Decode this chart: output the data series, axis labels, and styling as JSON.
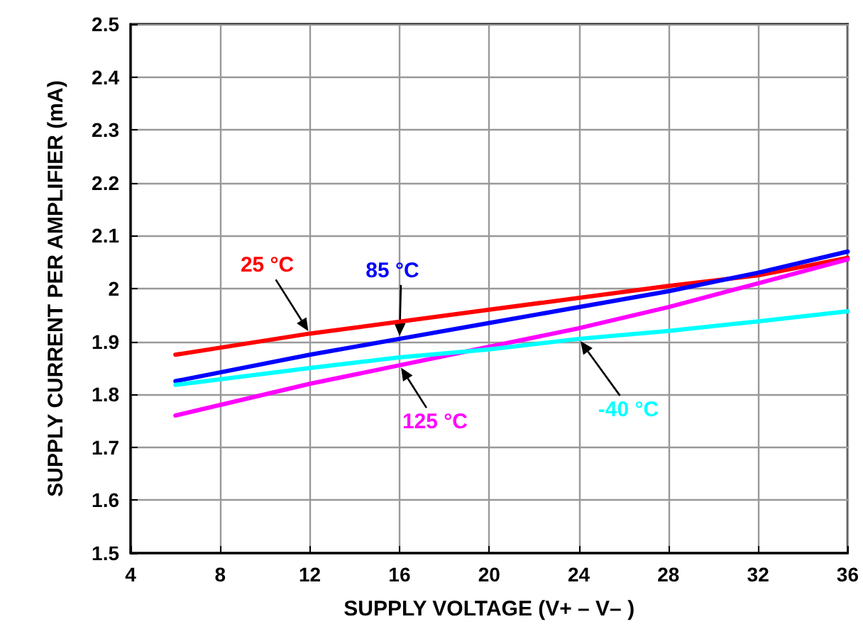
{
  "chart_data": {
    "type": "line",
    "xlabel": "SUPPLY VOLTAGE (V+ – V– )",
    "ylabel": "SUPPLY CURRENT PER AMPLIFIER (mA)",
    "xlim": [
      4,
      36
    ],
    "xticks": [
      4,
      8,
      12,
      16,
      20,
      24,
      28,
      32,
      36
    ],
    "ylim": [
      1.5,
      2.5
    ],
    "yticks": [
      1.5,
      1.6,
      1.7,
      1.8,
      1.9,
      2,
      2.1,
      2.2,
      2.3,
      2.4,
      2.5
    ],
    "grid": true,
    "marker": "none",
    "line_style": "solid",
    "series": [
      {
        "name": "25 °C",
        "color": "#ff0000",
        "x": [
          6,
          12,
          20,
          28,
          32,
          36
        ],
        "values": [
          1.875,
          1.915,
          1.96,
          2.005,
          2.025,
          2.058
        ]
      },
      {
        "name": "85 °C",
        "color": "#0000ff",
        "x": [
          6,
          12,
          16,
          20,
          28,
          32,
          36
        ],
        "values": [
          1.825,
          1.875,
          1.905,
          1.935,
          1.995,
          2.03,
          2.07
        ]
      },
      {
        "name": "125 °C",
        "color": "#ff00ff",
        "x": [
          6,
          12,
          16,
          20,
          24,
          28,
          32,
          36
        ],
        "values": [
          1.76,
          1.82,
          1.855,
          1.89,
          1.925,
          1.965,
          2.01,
          2.055
        ]
      },
      {
        "name": "-40 °C",
        "color": "#00ffff",
        "x": [
          6,
          12,
          16,
          20,
          24,
          28,
          32,
          36
        ],
        "values": [
          1.818,
          1.85,
          1.87,
          1.885,
          1.905,
          1.92,
          1.938,
          1.957
        ]
      }
    ]
  }
}
